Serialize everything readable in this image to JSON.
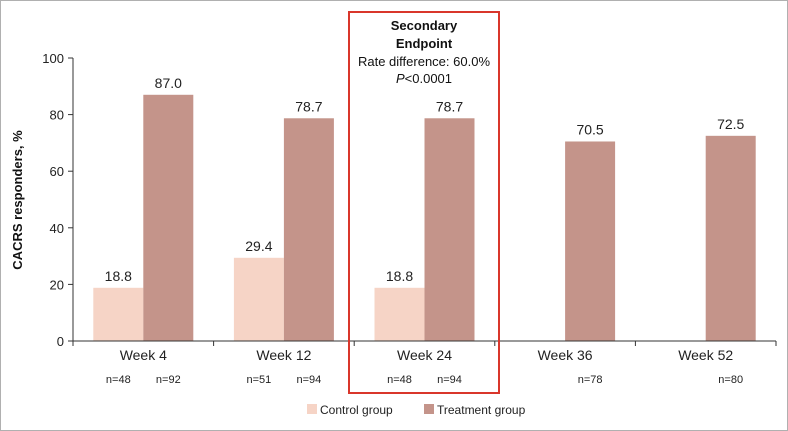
{
  "chart_data": {
    "type": "bar",
    "ylabel": "CACRS responders, %",
    "xlabel": "",
    "ylim": [
      0,
      100
    ],
    "yticks": [
      0,
      20,
      40,
      60,
      80,
      100
    ],
    "categories": [
      "Week 4",
      "Week 12",
      "Week 24",
      "Week 36",
      "Week 52"
    ],
    "series": [
      {
        "name": "Control group",
        "color": "#f6d4c6",
        "values": [
          18.8,
          29.4,
          18.8,
          null,
          null
        ],
        "labels": [
          "18.8",
          "29.4",
          "18.8",
          null,
          null
        ],
        "n": [
          "n=48",
          "n=51",
          "n=48",
          null,
          null
        ]
      },
      {
        "name": "Treatment group",
        "color": "#c4948a",
        "values": [
          87.0,
          78.7,
          78.7,
          70.5,
          72.5
        ],
        "labels": [
          "87.0",
          "78.7",
          "78.7",
          "70.5",
          "72.5"
        ],
        "n": [
          "n=92",
          "n=94",
          "n=94",
          "n=78",
          "n=80"
        ]
      }
    ],
    "annotation": {
      "category": "Week 24",
      "title_line1": "Secondary",
      "title_line2": "Endpoint",
      "line3": "Rate difference: 60.0%",
      "p_italic": "P",
      "p_rest": "<0.0001",
      "box_color": "#d9362b"
    },
    "legend": {
      "position": "bottom-center"
    }
  }
}
